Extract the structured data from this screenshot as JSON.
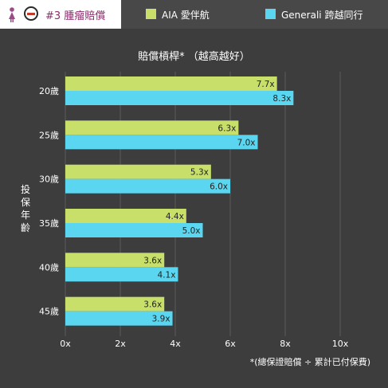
{
  "header": {
    "tab_title": "#3 腫瘤賠償",
    "female_icon_color": "#9b4a87"
  },
  "legend": [
    {
      "label": "AIA 愛伴航",
      "color": "#c8e06a"
    },
    {
      "label": "Generali 跨越同行",
      "color": "#5ad6f0"
    }
  ],
  "chart_data": {
    "type": "bar",
    "orientation": "horizontal",
    "title": "賠償槓桿*  （越高越好）",
    "ylabel": "投保年齡",
    "categories": [
      "20歲",
      "25歲",
      "30歲",
      "35歲",
      "40歲",
      "45歲"
    ],
    "series": [
      {
        "name": "AIA 愛伴航",
        "values": [
          7.7,
          6.3,
          5.3,
          4.4,
          3.6,
          3.6
        ],
        "labels": [
          "7.7x",
          "6.3x",
          "5.3x",
          "4.4x",
          "3.6x",
          "3.6x"
        ],
        "color": "#c8e06a"
      },
      {
        "name": "Generali 跨越同行",
        "values": [
          8.3,
          7.0,
          6.0,
          5.0,
          4.1,
          3.9
        ],
        "labels": [
          "8.3x",
          "7.0x",
          "6.0x",
          "5.0x",
          "4.1x",
          "3.9x"
        ],
        "color": "#5ad6f0"
      }
    ],
    "xlim": [
      0,
      10
    ],
    "xticks": [
      0,
      2,
      4,
      6,
      8,
      10
    ],
    "xtick_labels": [
      "0x",
      "2x",
      "4x",
      "6x",
      "8x",
      "10x"
    ],
    "grid": true,
    "footnote": "*(總保證賠償 ÷ 累計已付保費)"
  }
}
